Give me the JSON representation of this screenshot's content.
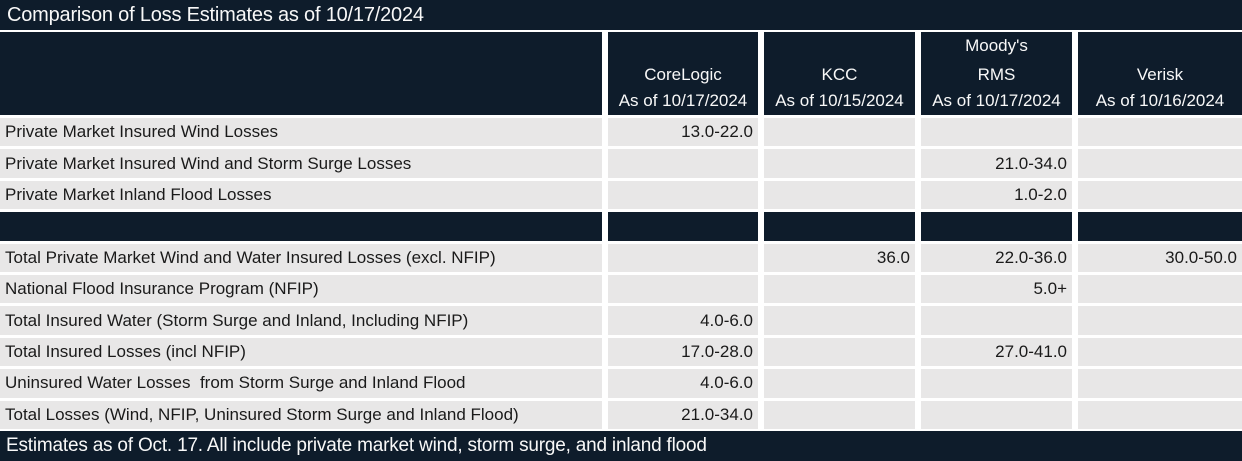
{
  "title": "Comparison of Loss Estimates as of 10/17/2024",
  "footer": "Estimates as of Oct. 17. All include private market wind, storm surge, and inland flood",
  "colors": {
    "navy": "#0e1c2b",
    "row_bg": "#e8e7e7",
    "gap_white": "#ffffff",
    "text_dark": "#1a1a1a",
    "text_light": "#f8f8f8"
  },
  "columns": [
    {
      "name": "CoreLogic",
      "as_of": "As of 10/17/2024"
    },
    {
      "name": "KCC",
      "as_of": "As of 10/15/2024"
    },
    {
      "name": "Moody's\nRMS",
      "as_of": "As of 10/17/2024"
    },
    {
      "name": "Verisk",
      "as_of": "As of 10/16/2024"
    }
  ],
  "rows": [
    {
      "type": "data",
      "label": "Private Market Insured Wind Losses",
      "values": [
        "13.0-22.0",
        "",
        "",
        ""
      ]
    },
    {
      "type": "data",
      "label": "Private Market Insured Wind and Storm Surge Losses",
      "values": [
        "",
        "",
        "21.0-34.0",
        ""
      ]
    },
    {
      "type": "data",
      "label": "Private Market Inland Flood Losses",
      "values": [
        "",
        "",
        "1.0-2.0",
        ""
      ]
    },
    {
      "type": "separator",
      "label": "",
      "values": [
        "",
        "",
        "",
        ""
      ]
    },
    {
      "type": "data",
      "label": "Total Private Market Wind and Water Insured Losses (excl. NFIP)",
      "values": [
        "",
        "36.0",
        "22.0-36.0",
        "30.0-50.0"
      ]
    },
    {
      "type": "data",
      "label": "National Flood Insurance Program (NFIP)",
      "values": [
        "",
        "",
        "5.0+",
        ""
      ]
    },
    {
      "type": "data",
      "label": "Total Insured Water (Storm Surge and Inland, Including NFIP)",
      "values": [
        "4.0-6.0",
        "",
        "",
        ""
      ]
    },
    {
      "type": "data",
      "label": "Total Insured Losses (incl NFIP)",
      "values": [
        "17.0-28.0",
        "",
        "27.0-41.0",
        ""
      ]
    },
    {
      "type": "data",
      "label": "Uninsured Water Losses  from Storm Surge and Inland Flood",
      "values": [
        "4.0-6.0",
        "",
        "",
        ""
      ]
    },
    {
      "type": "data",
      "label": "Total Losses (Wind, NFIP, Uninsured Storm Surge and Inland Flood)",
      "values": [
        "21.0-34.0",
        "",
        "",
        ""
      ]
    }
  ]
}
